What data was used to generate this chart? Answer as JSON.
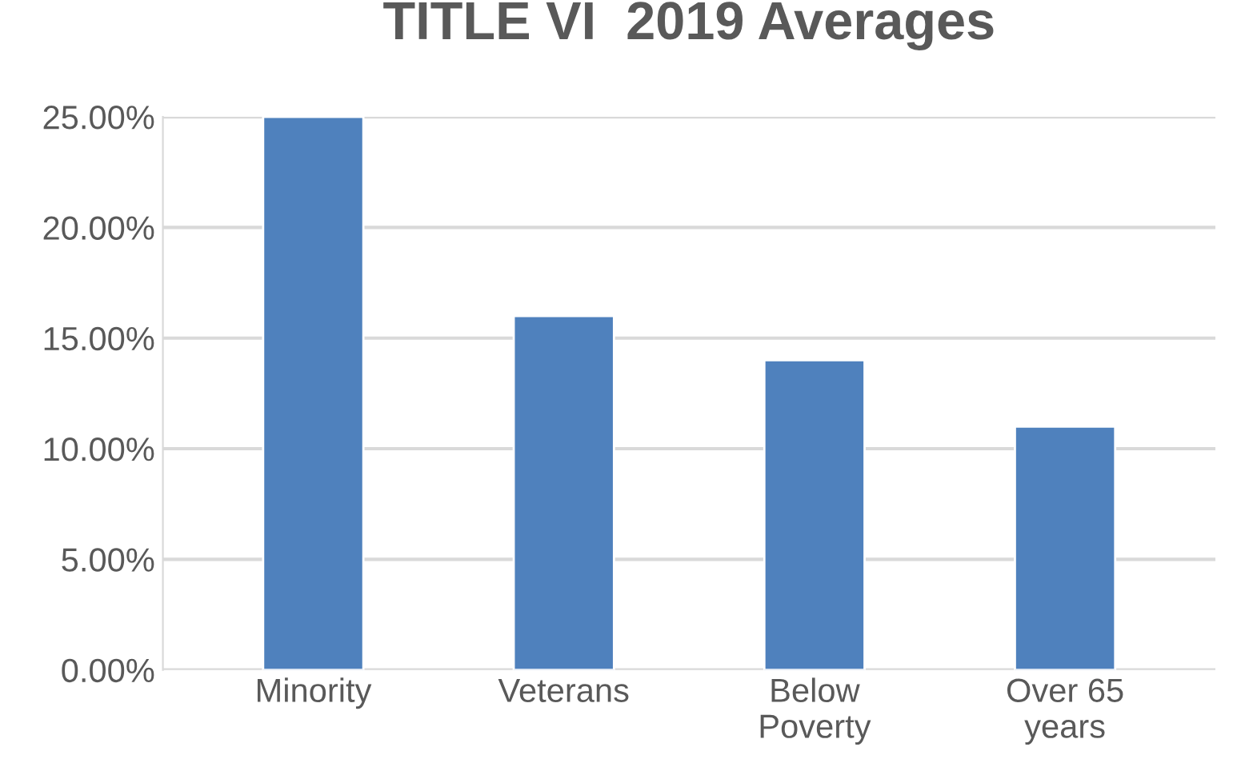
{
  "chart_data": {
    "type": "bar",
    "title": "TITLE VI  2019 Averages",
    "categories": [
      "Minority",
      "Veterans",
      "Below\nPoverty",
      "Over 65\nyears"
    ],
    "values": [
      25,
      16,
      14,
      11
    ],
    "color": "#4f81bd",
    "ylim": [
      0,
      25
    ],
    "yticks": [
      {
        "value": 0,
        "label": "0.00%"
      },
      {
        "value": 5,
        "label": "5.00%"
      },
      {
        "value": 10,
        "label": "10.00%"
      },
      {
        "value": 15,
        "label": "15.00%"
      },
      {
        "value": 20,
        "label": "20.00%"
      },
      {
        "value": 25,
        "label": "25.00%"
      }
    ],
    "grid": "y",
    "legend": false
  }
}
